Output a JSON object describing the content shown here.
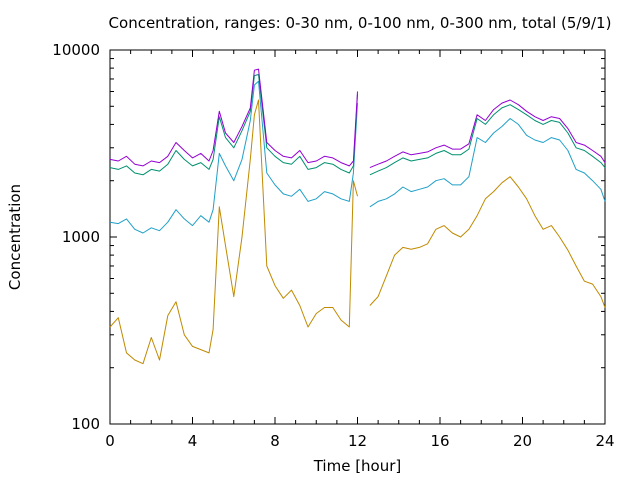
{
  "chart_data": {
    "type": "line",
    "title": "Concentration, ranges: 0-30 nm, 0-100 nm, 0-300 nm, total (5/9/1)",
    "xlabel": "Time [hour]",
    "ylabel": "Concentration",
    "xlim": [
      0,
      24
    ],
    "ylim": [
      100,
      10000
    ],
    "yscale": "log",
    "grid": false,
    "legend": "none",
    "x_ticks": [
      0,
      4,
      8,
      12,
      16,
      20,
      24
    ],
    "x_tick_labels": [
      "0",
      "4",
      "8",
      "12",
      "16",
      "20",
      "24"
    ],
    "y_ticks": [
      100,
      1000,
      10000
    ],
    "y_tick_labels": [
      "100",
      "1000",
      "10000"
    ],
    "series": [
      {
        "color": "#c08a00",
        "x": [
          0,
          0.4,
          0.8,
          1.2,
          1.6,
          2.0,
          2.4,
          2.8,
          3.2,
          3.6,
          4.0,
          4.4,
          4.8,
          5.0,
          5.3,
          5.6,
          6.0,
          6.4,
          6.8,
          7.0,
          7.2,
          7.6,
          8.0,
          8.4,
          8.8,
          9.2,
          9.6,
          10.0,
          10.4,
          10.8,
          11.2,
          11.6,
          11.8,
          12.0,
          12.2,
          12.6,
          13.0,
          13.4,
          13.8,
          14.2,
          14.6,
          15.0,
          15.4,
          15.8,
          16.2,
          16.6,
          17.0,
          17.4,
          17.8,
          18.2,
          18.6,
          19.0,
          19.4,
          19.8,
          20.2,
          20.6,
          21.0,
          21.4,
          21.8,
          22.2,
          22.6,
          23.0,
          23.4,
          23.8,
          24.0
        ],
        "y": [
          330,
          370,
          240,
          220,
          210,
          290,
          220,
          380,
          450,
          300,
          260,
          250,
          240,
          320,
          1450,
          900,
          480,
          1000,
          2600,
          4500,
          5400,
          700,
          550,
          470,
          520,
          430,
          330,
          390,
          420,
          420,
          360,
          330,
          2000,
          1650,
          null,
          430,
          480,
          620,
          800,
          880,
          860,
          880,
          920,
          1100,
          1150,
          1050,
          1000,
          1100,
          1300,
          1600,
          1750,
          1950,
          2100,
          1850,
          1600,
          1300,
          1100,
          1150,
          1000,
          850,
          700,
          580,
          560,
          480,
          420
        ]
      },
      {
        "color": "#20a0c8",
        "x": [
          0,
          0.4,
          0.8,
          1.2,
          1.6,
          2.0,
          2.4,
          2.8,
          3.2,
          3.6,
          4.0,
          4.4,
          4.8,
          5.0,
          5.3,
          5.6,
          6.0,
          6.4,
          6.8,
          7.0,
          7.2,
          7.6,
          8.0,
          8.4,
          8.8,
          9.2,
          9.6,
          10.0,
          10.4,
          10.8,
          11.2,
          11.6,
          11.8,
          12.0,
          12.2,
          12.6,
          13.0,
          13.4,
          13.8,
          14.2,
          14.6,
          15.0,
          15.4,
          15.8,
          16.2,
          16.6,
          17.0,
          17.4,
          17.8,
          18.2,
          18.6,
          19.0,
          19.4,
          19.8,
          20.2,
          20.6,
          21.0,
          21.4,
          21.8,
          22.2,
          22.6,
          23.0,
          23.4,
          23.8,
          24.0
        ],
        "y": [
          1200,
          1180,
          1250,
          1100,
          1050,
          1120,
          1080,
          1200,
          1400,
          1250,
          1150,
          1300,
          1200,
          1400,
          2800,
          2400,
          2000,
          2600,
          4200,
          6500,
          6800,
          2200,
          1900,
          1700,
          1650,
          1800,
          1550,
          1600,
          1750,
          1700,
          1600,
          1550,
          2200,
          5200,
          null,
          1450,
          1550,
          1600,
          1700,
          1850,
          1750,
          1800,
          1850,
          2000,
          2050,
          1900,
          1900,
          2100,
          3400,
          3200,
          3600,
          3900,
          4300,
          4000,
          3500,
          3300,
          3200,
          3400,
          3300,
          2900,
          2300,
          2200,
          2000,
          1800,
          1550
        ]
      },
      {
        "color": "#009070",
        "x": [
          0,
          0.4,
          0.8,
          1.2,
          1.6,
          2.0,
          2.4,
          2.8,
          3.2,
          3.6,
          4.0,
          4.4,
          4.8,
          5.0,
          5.3,
          5.6,
          6.0,
          6.4,
          6.8,
          7.0,
          7.2,
          7.6,
          8.0,
          8.4,
          8.8,
          9.2,
          9.6,
          10.0,
          10.4,
          10.8,
          11.2,
          11.6,
          11.8,
          12.0,
          12.2,
          12.6,
          13.0,
          13.4,
          13.8,
          14.2,
          14.6,
          15.0,
          15.4,
          15.8,
          16.2,
          16.6,
          17.0,
          17.4,
          17.8,
          18.2,
          18.6,
          19.0,
          19.4,
          19.8,
          20.2,
          20.6,
          21.0,
          21.4,
          21.8,
          22.2,
          22.6,
          23.0,
          23.4,
          23.8,
          24.0
        ],
        "y": [
          2350,
          2300,
          2400,
          2200,
          2150,
          2300,
          2250,
          2450,
          2900,
          2600,
          2400,
          2500,
          2300,
          2600,
          4400,
          3400,
          3000,
          3700,
          4700,
          7300,
          7400,
          3000,
          2700,
          2500,
          2450,
          2700,
          2300,
          2350,
          2500,
          2450,
          2300,
          2200,
          2400,
          5800,
          null,
          2150,
          2250,
          2350,
          2500,
          2650,
          2550,
          2600,
          2650,
          2800,
          2900,
          2750,
          2750,
          2950,
          4300,
          4000,
          4500,
          4900,
          5100,
          4800,
          4500,
          4200,
          4000,
          4200,
          4100,
          3600,
          3000,
          2900,
          2700,
          2500,
          2350
        ]
      },
      {
        "color": "#9400d3",
        "x": [
          0,
          0.4,
          0.8,
          1.2,
          1.6,
          2.0,
          2.4,
          2.8,
          3.2,
          3.6,
          4.0,
          4.4,
          4.8,
          5.0,
          5.3,
          5.6,
          6.0,
          6.4,
          6.8,
          7.0,
          7.2,
          7.6,
          8.0,
          8.4,
          8.8,
          9.2,
          9.6,
          10.0,
          10.4,
          10.8,
          11.2,
          11.6,
          11.8,
          12.0,
          12.2,
          12.6,
          13.0,
          13.4,
          13.8,
          14.2,
          14.6,
          15.0,
          15.4,
          15.8,
          16.2,
          16.6,
          17.0,
          17.4,
          17.8,
          18.2,
          18.6,
          19.0,
          19.4,
          19.8,
          20.2,
          20.6,
          21.0,
          21.4,
          21.8,
          22.2,
          22.6,
          23.0,
          23.4,
          23.8,
          24.0
        ],
        "y": [
          2600,
          2550,
          2700,
          2450,
          2400,
          2550,
          2500,
          2700,
          3200,
          2900,
          2650,
          2800,
          2550,
          2900,
          4700,
          3600,
          3200,
          3900,
          4900,
          7800,
          7900,
          3200,
          2900,
          2700,
          2650,
          2900,
          2500,
          2550,
          2700,
          2650,
          2500,
          2400,
          2550,
          6000,
          null,
          2350,
          2450,
          2550,
          2700,
          2850,
          2750,
          2800,
          2850,
          3000,
          3100,
          2950,
          2950,
          3150,
          4500,
          4200,
          4800,
          5200,
          5400,
          5100,
          4700,
          4400,
          4200,
          4400,
          4300,
          3800,
          3200,
          3100,
          2900,
          2700,
          2500
        ]
      }
    ]
  }
}
